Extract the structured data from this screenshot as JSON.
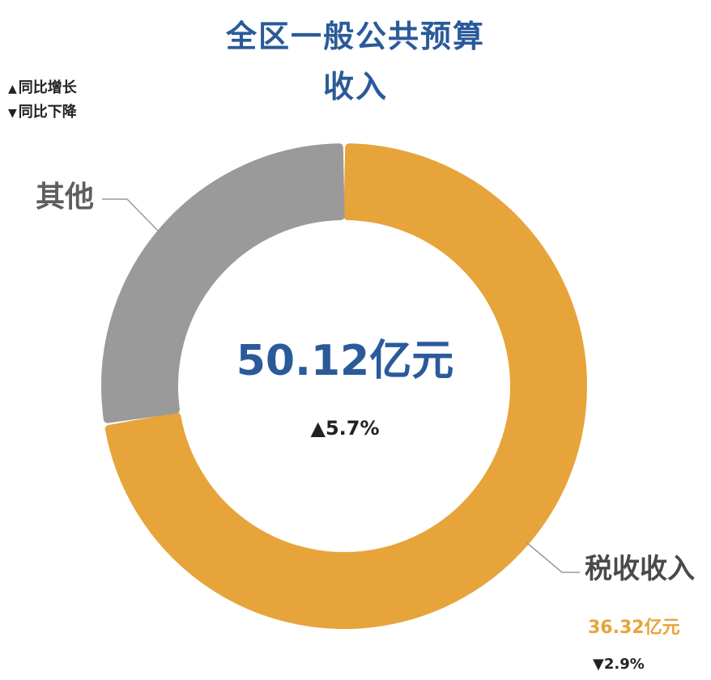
{
  "title": {
    "line1": "全区一般公共预算",
    "line2": "收入"
  },
  "legend": [
    {
      "symbol": "▲",
      "label": "同比增长"
    },
    {
      "symbol": "▼",
      "label": "同比下降"
    }
  ],
  "center": {
    "total": "50.12亿元",
    "change": "▲5.7%"
  },
  "colors": {
    "title": "#2a5a9a",
    "tax": "#e7a43a",
    "other": "#9a9a9a",
    "leader": "#9a9a9a"
  },
  "chart_data": {
    "type": "pie",
    "variant": "donut",
    "total": 50.12,
    "unit": "亿元",
    "total_change": "▲5.7%",
    "slices": [
      {
        "name": "税收收入",
        "value": 36.32,
        "value_label": "36.32亿元",
        "change": "▼2.9%",
        "color": "#e7a43a"
      },
      {
        "name": "其他",
        "value": 13.8,
        "color": "#9a9a9a"
      }
    ]
  }
}
